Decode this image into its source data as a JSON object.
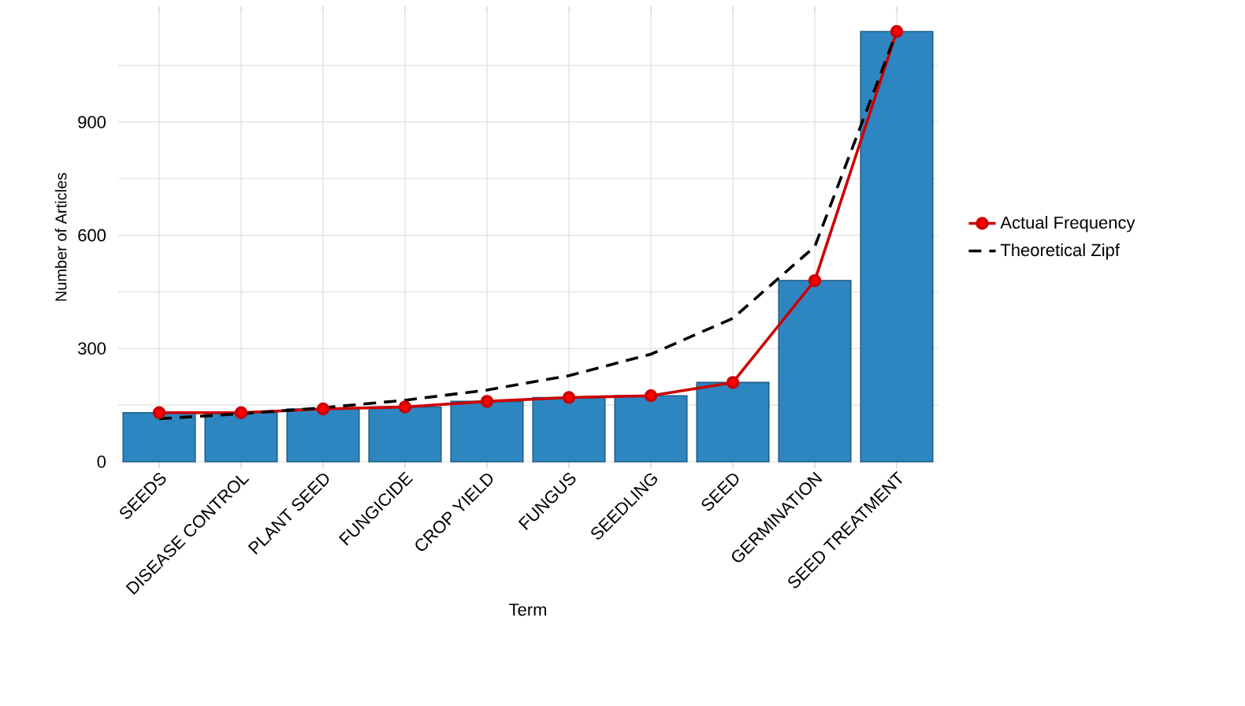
{
  "chart_data": {
    "type": "bar",
    "xlabel": "Term",
    "ylabel": "Number of Articles",
    "categories": [
      "SEEDS",
      "DISEASE CONTROL",
      "PLANT SEED",
      "FUNGICIDE",
      "CROP YIELD",
      "FUNGUS",
      "SEEDLING",
      "SEED",
      "GERMINATION",
      "SEED TREATMENT"
    ],
    "series": [
      {
        "color": "#2e86c1",
        "values": [
          130,
          130,
          140,
          145,
          160,
          170,
          175,
          210,
          480,
          1140
        ]
      },
      {
        "type": "line",
        "name": "Actual Frequency",
        "color": "#cc0000",
        "marker": "circle",
        "line_style": "solid",
        "values": [
          130,
          130,
          140,
          145,
          160,
          170,
          175,
          210,
          480,
          1140
        ]
      },
      {
        "type": "line",
        "name": "Theoretical Zipf",
        "color": "#000000",
        "marker": "none",
        "line_style": "dashed",
        "values": [
          114,
          127,
          143,
          163,
          190,
          228,
          285,
          380,
          570,
          1140
        ]
      }
    ],
    "ylim": [
      0,
      1190
    ],
    "yticks": [
      0,
      {
        "value": 150,
        "label": null
      },
      300,
      {
        "value": 450,
        "label": null
      },
      600,
      {
        "value": 750,
        "label": null
      },
      900,
      {
        "value": 1050,
        "label": null
      }
    ],
    "grid": true,
    "legend": "right"
  }
}
